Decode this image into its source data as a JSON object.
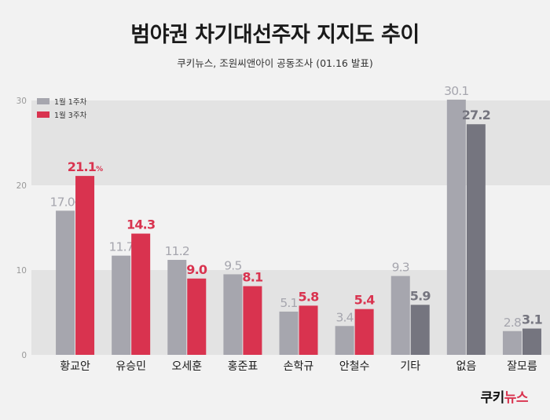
{
  "title": "범야권 차기대선주자 지지도 추이",
  "subtitle": "쿠키뉴스, 조원씨앤아이 공동조사 (01.16 발표)",
  "logo": {
    "part1": "쿠키",
    "part2": "뉴스"
  },
  "colors": {
    "series1": "#a6a6ae",
    "series1_label": "#a6a6ae",
    "series2_red": "#d9334f",
    "series2_gray": "#75757f",
    "band": "#e3e3e3",
    "background": "#f2f2f2"
  },
  "chart_data": {
    "type": "bar",
    "title": "범야권 차기대선주자 지지도 추이",
    "subtitle": "쿠키뉴스, 조원씨앤아이 공동조사 (01.16 발표)",
    "ylim": [
      0,
      30
    ],
    "yticks": [
      0,
      10,
      20,
      30
    ],
    "grid": "alternating horizontal bands",
    "legend_position": "top-left",
    "categories": [
      "황교안",
      "유승민",
      "오세훈",
      "홍준표",
      "손학규",
      "안철수",
      "기타",
      "없음",
      "잘모름"
    ],
    "series": [
      {
        "name": "1월 1주차",
        "values": [
          17.0,
          11.7,
          11.2,
          9.5,
          5.1,
          3.4,
          9.3,
          30.1,
          2.8
        ],
        "labels": [
          "17.0",
          "11.7",
          "11.2",
          "9.5",
          "5.1",
          "3.4",
          "9.3",
          "30.1",
          "2.8"
        ]
      },
      {
        "name": "1월 3주차",
        "values": [
          21.1,
          14.3,
          9.0,
          8.1,
          5.8,
          5.4,
          5.9,
          27.2,
          3.1
        ],
        "labels": [
          "21.1",
          "14.3",
          "9.0",
          "8.1",
          "5.8",
          "5.4",
          "5.9",
          "27.2",
          "3.1"
        ]
      }
    ],
    "percent_suffix": "%",
    "percent_suffix_on": [
      0
    ]
  }
}
